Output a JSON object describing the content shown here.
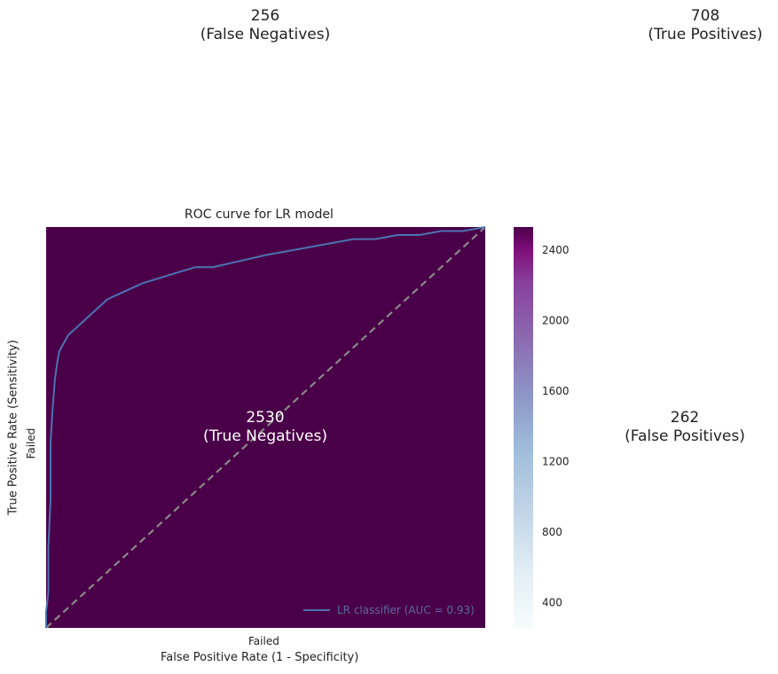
{
  "chart_data": [
    {
      "type": "heatmap",
      "title": "",
      "xlabel": "",
      "ylabel": "",
      "row_labels": [
        "",
        "Failed"
      ],
      "col_labels": [
        "Failed",
        ""
      ],
      "cells": [
        [
          {
            "value": 256,
            "label": "(False Negatives)"
          },
          {
            "value": 708,
            "label": "(True Positives)"
          }
        ],
        [
          {
            "value": 2530,
            "label": "(True Negatives)"
          },
          {
            "value": 262,
            "label": "(False Positives)"
          }
        ]
      ],
      "colormap": "BuPu",
      "colorbar": {
        "range": [
          256,
          2530
        ],
        "ticks": [
          400,
          800,
          1200,
          1600,
          2000,
          2400
        ]
      },
      "cell_color": "#4a0048"
    },
    {
      "type": "line",
      "title": "ROC curve for LR model",
      "xlabel": "False Positive Rate (1 - Specificity)",
      "ylabel": "True Positive Rate (Sensitivity)",
      "xlim": [
        0,
        1
      ],
      "ylim": [
        0,
        1
      ],
      "grid": false,
      "legend_position": "lower-right",
      "series": [
        {
          "name": "LR classifier (AUC = 0.93)",
          "color": "#4c72b0",
          "x": [
            0,
            0,
            0.005,
            0.005,
            0.01,
            0.01,
            0.015,
            0.02,
            0.025,
            0.03,
            0.04,
            0.05,
            0.06,
            0.07,
            0.08,
            0.1,
            0.12,
            0.14,
            0.16,
            0.18,
            0.2,
            0.22,
            0.25,
            0.28,
            0.31,
            0.34,
            0.38,
            0.42,
            0.46,
            0.5,
            0.55,
            0.6,
            0.65,
            0.7,
            0.75,
            0.8,
            0.85,
            0.9,
            0.95,
            1
          ],
          "y": [
            0,
            0.04,
            0.09,
            0.2,
            0.32,
            0.46,
            0.55,
            0.62,
            0.66,
            0.69,
            0.71,
            0.73,
            0.74,
            0.75,
            0.76,
            0.78,
            0.8,
            0.82,
            0.83,
            0.84,
            0.85,
            0.86,
            0.87,
            0.88,
            0.89,
            0.9,
            0.9,
            0.91,
            0.92,
            0.93,
            0.94,
            0.95,
            0.96,
            0.97,
            0.97,
            0.98,
            0.98,
            0.99,
            0.99,
            1
          ]
        },
        {
          "name": "",
          "color": "#888888",
          "dashed": true,
          "x": [
            0,
            1
          ],
          "y": [
            0,
            1
          ]
        }
      ]
    }
  ]
}
